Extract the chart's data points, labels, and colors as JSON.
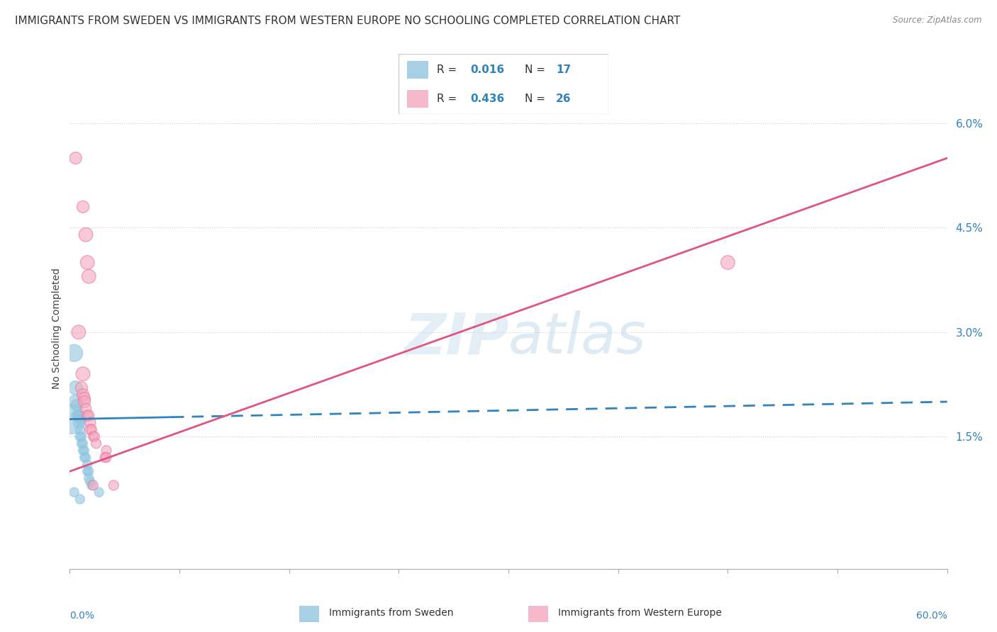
{
  "title": "IMMIGRANTS FROM SWEDEN VS IMMIGRANTS FROM WESTERN EUROPE NO SCHOOLING COMPLETED CORRELATION CHART",
  "source": "Source: ZipAtlas.com",
  "ylabel": "No Schooling Completed",
  "xlim": [
    0.0,
    0.6
  ],
  "ylim": [
    -0.004,
    0.065
  ],
  "yticks": [
    0.015,
    0.03,
    0.045,
    0.06
  ],
  "ytick_labels": [
    "1.5%",
    "3.0%",
    "4.5%",
    "6.0%"
  ],
  "xtick_positions": [
    0.0,
    0.075,
    0.15,
    0.225,
    0.3,
    0.375,
    0.45,
    0.525,
    0.6
  ],
  "blue_color": "#92c5de",
  "blue_edge_color": "#92c5de",
  "pink_color": "#f4a6be",
  "pink_edge_color": "#e87aa0",
  "blue_line_color": "#3182bd",
  "pink_line_color": "#e05580",
  "blue_scatter": [
    [
      0.001,
      0.0175
    ],
    [
      0.003,
      0.027
    ],
    [
      0.004,
      0.022
    ],
    [
      0.004,
      0.02
    ],
    [
      0.005,
      0.0195
    ],
    [
      0.005,
      0.018
    ],
    [
      0.006,
      0.018
    ],
    [
      0.006,
      0.017
    ],
    [
      0.007,
      0.0175
    ],
    [
      0.007,
      0.016
    ],
    [
      0.007,
      0.015
    ],
    [
      0.008,
      0.015
    ],
    [
      0.008,
      0.014
    ],
    [
      0.009,
      0.014
    ],
    [
      0.009,
      0.013
    ],
    [
      0.01,
      0.013
    ],
    [
      0.01,
      0.012
    ],
    [
      0.011,
      0.012
    ],
    [
      0.012,
      0.011
    ],
    [
      0.012,
      0.01
    ],
    [
      0.013,
      0.01
    ],
    [
      0.013,
      0.009
    ],
    [
      0.014,
      0.0085
    ],
    [
      0.015,
      0.008
    ],
    [
      0.02,
      0.007
    ],
    [
      0.003,
      0.007
    ],
    [
      0.007,
      0.006
    ]
  ],
  "blue_sizes": [
    900,
    300,
    200,
    200,
    150,
    120,
    120,
    120,
    100,
    100,
    100,
    90,
    90,
    90,
    90,
    90,
    90,
    90,
    90,
    90,
    90,
    90,
    90,
    90,
    90,
    90,
    90
  ],
  "pink_scatter": [
    [
      0.004,
      0.055
    ],
    [
      0.009,
      0.048
    ],
    [
      0.011,
      0.044
    ],
    [
      0.012,
      0.04
    ],
    [
      0.013,
      0.038
    ],
    [
      0.006,
      0.03
    ],
    [
      0.009,
      0.024
    ],
    [
      0.008,
      0.022
    ],
    [
      0.009,
      0.021
    ],
    [
      0.01,
      0.0205
    ],
    [
      0.01,
      0.02
    ],
    [
      0.011,
      0.019
    ],
    [
      0.012,
      0.018
    ],
    [
      0.013,
      0.018
    ],
    [
      0.014,
      0.017
    ],
    [
      0.014,
      0.016
    ],
    [
      0.015,
      0.016
    ],
    [
      0.016,
      0.015
    ],
    [
      0.017,
      0.015
    ],
    [
      0.018,
      0.014
    ],
    [
      0.025,
      0.013
    ],
    [
      0.024,
      0.012
    ],
    [
      0.025,
      0.012
    ],
    [
      0.016,
      0.008
    ],
    [
      0.03,
      0.008
    ],
    [
      0.45,
      0.04
    ]
  ],
  "pink_sizes": [
    150,
    150,
    200,
    200,
    200,
    200,
    200,
    150,
    150,
    150,
    150,
    120,
    120,
    120,
    120,
    120,
    100,
    100,
    100,
    100,
    100,
    100,
    100,
    100,
    100,
    200
  ],
  "blue_line_solid_end": 0.07,
  "blue_line_x0": 0.0,
  "blue_line_y0": 0.0175,
  "blue_line_x1": 0.6,
  "blue_line_y1": 0.02,
  "pink_line_x0": 0.0,
  "pink_line_y0": 0.01,
  "pink_line_x1": 0.6,
  "pink_line_y1": 0.055
}
